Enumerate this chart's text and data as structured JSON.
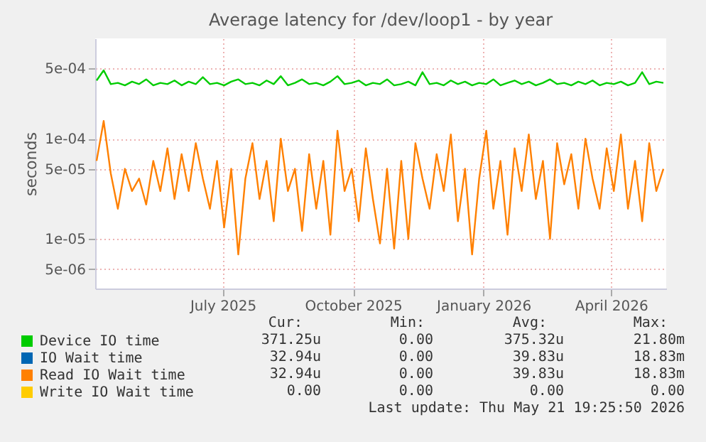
{
  "chart_data": {
    "type": "line",
    "title": "Average latency for /dev/loop1 - by year",
    "ylabel": "seconds",
    "log": "y",
    "grid": true,
    "legend": "bottom left",
    "xlim": [
      "2025-04-02",
      "2026-05-10"
    ],
    "xticks": [
      {
        "value": "2025-07-01",
        "label": "July 2025"
      },
      {
        "value": "2025-10-01",
        "label": "October 2025"
      },
      {
        "value": "2026-01-01",
        "label": "January 2026"
      },
      {
        "value": "2026-04-01",
        "label": "April 2026"
      }
    ],
    "ylim": [
      3.2e-06,
      0.001
    ],
    "yticks": [
      {
        "value": 5e-06,
        "label": "5e-06"
      },
      {
        "value": 1e-05,
        "label": "1e-05"
      },
      {
        "value": 5e-05,
        "label": "5e-05"
      },
      {
        "value": 0.0001,
        "label": "1e-04"
      },
      {
        "value": 0.0005,
        "label": "5e-04"
      }
    ],
    "x": [
      "2025-04-03",
      "2025-04-08",
      "2025-04-13",
      "2025-04-18",
      "2025-04-23",
      "2025-04-28",
      "2025-05-03",
      "2025-05-08",
      "2025-05-13",
      "2025-05-18",
      "2025-05-23",
      "2025-05-28",
      "2025-06-02",
      "2025-06-07",
      "2025-06-12",
      "2025-06-17",
      "2025-06-22",
      "2025-06-27",
      "2025-07-02",
      "2025-07-07",
      "2025-07-12",
      "2025-07-17",
      "2025-07-22",
      "2025-07-27",
      "2025-08-01",
      "2025-08-06",
      "2025-08-11",
      "2025-08-16",
      "2025-08-21",
      "2025-08-26",
      "2025-08-31",
      "2025-09-05",
      "2025-09-10",
      "2025-09-15",
      "2025-09-20",
      "2025-09-25",
      "2025-09-30",
      "2025-10-05",
      "2025-10-10",
      "2025-10-15",
      "2025-10-20",
      "2025-10-25",
      "2025-10-30",
      "2025-11-04",
      "2025-11-09",
      "2025-11-14",
      "2025-11-19",
      "2025-11-24",
      "2025-11-29",
      "2025-12-04",
      "2025-12-09",
      "2025-12-14",
      "2025-12-19",
      "2025-12-24",
      "2025-12-29",
      "2026-01-03",
      "2026-01-08",
      "2026-01-13",
      "2026-01-18",
      "2026-01-23",
      "2026-01-28",
      "2026-02-02",
      "2026-02-07",
      "2026-02-12",
      "2026-02-17",
      "2026-02-22",
      "2026-02-27",
      "2026-03-04",
      "2026-03-09",
      "2026-03-14",
      "2026-03-19",
      "2026-03-24",
      "2026-03-29",
      "2026-04-03",
      "2026-04-08",
      "2026-04-13",
      "2026-04-18",
      "2026-04-23",
      "2026-04-28",
      "2026-05-03",
      "2026-05-08"
    ],
    "series": [
      {
        "name": "Device IO time",
        "color": "#00cc00",
        "values": [
          0.00038,
          0.00048,
          0.00035,
          0.00036,
          0.00034,
          0.00037,
          0.00035,
          0.00039,
          0.00034,
          0.00036,
          0.00035,
          0.00038,
          0.00034,
          0.00037,
          0.00035,
          0.00041,
          0.00035,
          0.00036,
          0.00034,
          0.00037,
          0.00039,
          0.00035,
          0.00036,
          0.00034,
          0.00038,
          0.00035,
          0.00042,
          0.00034,
          0.00036,
          0.00039,
          0.00035,
          0.00036,
          0.00034,
          0.00037,
          0.00042,
          0.00035,
          0.00036,
          0.00038,
          0.00034,
          0.00036,
          0.00035,
          0.00039,
          0.00034,
          0.00035,
          0.00037,
          0.00034,
          0.00046,
          0.00035,
          0.00036,
          0.00034,
          0.00038,
          0.00035,
          0.00037,
          0.00034,
          0.00036,
          0.00035,
          0.00039,
          0.00034,
          0.00036,
          0.00038,
          0.00035,
          0.00037,
          0.00034,
          0.00036,
          0.00039,
          0.00035,
          0.00036,
          0.00034,
          0.00037,
          0.00035,
          0.00038,
          0.00034,
          0.00036,
          0.00035,
          0.00037,
          0.00034,
          0.00036,
          0.00046,
          0.00035,
          0.00037,
          0.00036
        ]
      },
      {
        "name": "IO Wait time",
        "color": "#0066b3",
        "values": [
          null,
          null,
          null,
          null,
          null,
          null,
          null,
          null,
          null,
          null,
          null,
          null,
          null,
          null,
          null,
          null,
          null,
          null,
          null,
          null,
          null,
          null,
          null,
          null,
          null,
          null,
          null,
          null,
          null,
          null,
          null,
          null,
          null,
          null,
          null,
          null,
          null,
          null,
          null,
          null,
          null,
          null,
          null,
          null,
          null,
          null,
          null,
          null,
          null,
          null,
          null,
          null,
          null,
          null,
          null,
          null,
          null,
          null,
          null,
          null,
          null,
          null,
          null,
          null,
          null,
          null,
          null,
          null,
          null,
          null,
          null,
          null,
          null,
          null,
          null,
          null,
          null,
          null,
          null,
          null,
          null
        ]
      },
      {
        "name": "Read IO Wait time",
        "color": "#ff8000",
        "values": [
          6e-05,
          0.00015,
          4.5e-05,
          2e-05,
          5e-05,
          3e-05,
          4e-05,
          2.2e-05,
          6e-05,
          3e-05,
          8e-05,
          2.5e-05,
          7e-05,
          3e-05,
          9e-05,
          4e-05,
          2e-05,
          6e-05,
          1.3e-05,
          5e-05,
          7e-06,
          4e-05,
          9e-05,
          2.5e-05,
          6e-05,
          1.5e-05,
          0.0001,
          3e-05,
          5e-05,
          1.2e-05,
          7e-05,
          2e-05,
          6e-05,
          1.1e-05,
          0.00012,
          3e-05,
          5e-05,
          1.5e-05,
          8e-05,
          2.5e-05,
          9e-06,
          5e-05,
          8e-06,
          6e-05,
          1e-05,
          9e-05,
          4e-05,
          2e-05,
          7e-05,
          3e-05,
          0.00011,
          1.5e-05,
          5e-05,
          7e-06,
          4e-05,
          0.00012,
          2e-05,
          6e-05,
          1.1e-05,
          8e-05,
          3e-05,
          0.00011,
          2.5e-05,
          6e-05,
          1e-05,
          9e-05,
          3.5e-05,
          7e-05,
          2e-05,
          0.0001,
          4e-05,
          2e-05,
          8e-05,
          3e-05,
          0.00011,
          2e-05,
          6e-05,
          1.5e-05,
          9e-05,
          3e-05,
          5e-05
        ]
      },
      {
        "name": "Write IO Wait time",
        "color": "#ffcc00",
        "values": [
          null,
          null,
          null,
          null,
          null,
          null,
          null,
          null,
          null,
          null,
          null,
          null,
          null,
          null,
          null,
          null,
          null,
          null,
          null,
          null,
          null,
          null,
          null,
          null,
          null,
          null,
          null,
          null,
          null,
          null,
          null,
          null,
          null,
          null,
          null,
          null,
          null,
          null,
          null,
          null,
          null,
          null,
          null,
          null,
          null,
          null,
          null,
          null,
          null,
          null,
          null,
          null,
          null,
          null,
          null,
          null,
          null,
          null,
          null,
          null,
          null,
          null,
          null,
          null,
          null,
          null,
          null,
          null,
          null,
          null,
          null,
          null,
          null,
          null,
          null,
          null,
          null,
          null,
          null,
          null,
          null
        ]
      }
    ],
    "annotations": [
      "Cur:",
      "Min:",
      "Avg:",
      "Max:",
      "371.25u",
      "0.00",
      "375.32u",
      "21.80m",
      "32.94u",
      "0.00",
      "39.83u",
      "18.83m",
      "32.94u",
      "0.00",
      "39.83u",
      "18.83m",
      "0.00",
      "0.00",
      "0.00",
      "0.00",
      "Last update: Thu May 21 19:25:50 2026"
    ]
  }
}
